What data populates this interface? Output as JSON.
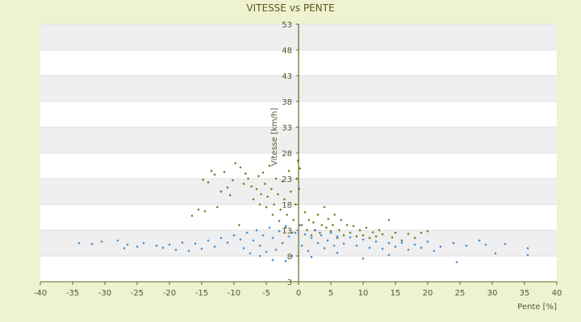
{
  "chart_data": {
    "type": "scatter",
    "title": "VITESSE vs PENTE",
    "xlabel": "Pente [%]",
    "ylabel": "Vitesse [km/h]",
    "xlim": [
      -40,
      40
    ],
    "ylim": [
      3,
      53
    ],
    "xticks": [
      -40,
      -35,
      -30,
      -25,
      -20,
      -15,
      -10,
      -5,
      0,
      5,
      10,
      15,
      20,
      25,
      30,
      35,
      40
    ],
    "yticks": [
      3,
      8,
      13,
      18,
      23,
      28,
      33,
      38,
      43,
      48,
      53
    ],
    "banded_background": true,
    "colors": {
      "page": "#eef2cf",
      "plot": "#ffffff",
      "band": "#efefef",
      "axis": "#5a6b1e",
      "series_olive": "#6b7a1a",
      "series_blue": "#3a8ad4"
    },
    "series": [
      {
        "color": "#6b7a1a",
        "marker": "diamond",
        "points": [
          [
            -16.5,
            15.8
          ],
          [
            -15.5,
            17.0
          ],
          [
            -14.5,
            16.7
          ],
          [
            -14.8,
            22.8
          ],
          [
            -14.0,
            22.3
          ],
          [
            -13.5,
            24.5
          ],
          [
            -13.0,
            23.8
          ],
          [
            -12.0,
            20.5
          ],
          [
            -11.0,
            21.3
          ],
          [
            -10.2,
            22.7
          ],
          [
            -9.8,
            26.0
          ],
          [
            -9.0,
            25.2
          ],
          [
            -8.5,
            22.0
          ],
          [
            -8.2,
            24.0
          ],
          [
            -7.8,
            23.0
          ],
          [
            -7.3,
            21.5
          ],
          [
            -7.0,
            19.0
          ],
          [
            -6.5,
            21.0
          ],
          [
            -6.2,
            23.5
          ],
          [
            -6.0,
            18.0
          ],
          [
            -5.8,
            20.0
          ],
          [
            -5.5,
            24.2
          ],
          [
            -5.2,
            22.0
          ],
          [
            -5.0,
            17.5
          ],
          [
            -4.8,
            19.5
          ],
          [
            -4.5,
            25.5
          ],
          [
            -4.2,
            21.0
          ],
          [
            -4.0,
            16.0
          ],
          [
            -3.8,
            18.0
          ],
          [
            -3.5,
            23.0
          ],
          [
            -3.2,
            20.0
          ],
          [
            -3.0,
            14.8
          ],
          [
            -2.8,
            17.0
          ],
          [
            -2.5,
            22.5
          ],
          [
            -2.2,
            19.0
          ],
          [
            -2.0,
            13.5
          ],
          [
            -1.8,
            16.0
          ],
          [
            -1.5,
            24.5
          ],
          [
            -1.2,
            20.5
          ],
          [
            -1.0,
            12.5
          ],
          [
            -0.8,
            15.0
          ],
          [
            -0.5,
            18.0
          ],
          [
            -0.3,
            23.0
          ],
          [
            -0.1,
            26.5
          ],
          [
            0.1,
            21.0
          ],
          [
            0.2,
            25.0
          ],
          [
            0.5,
            14.0
          ],
          [
            1.0,
            16.5
          ],
          [
            1.3,
            13.0
          ],
          [
            1.6,
            15.0
          ],
          [
            2.0,
            12.0
          ],
          [
            2.3,
            14.5
          ],
          [
            2.6,
            13.0
          ],
          [
            3.0,
            16.0
          ],
          [
            3.3,
            12.5
          ],
          [
            3.6,
            14.0
          ],
          [
            4.0,
            17.5
          ],
          [
            4.3,
            13.5
          ],
          [
            4.6,
            15.2
          ],
          [
            5.0,
            12.8
          ],
          [
            5.3,
            14.0
          ],
          [
            5.6,
            16.0
          ],
          [
            6.0,
            11.5
          ],
          [
            6.3,
            13.0
          ],
          [
            6.6,
            15.0
          ],
          [
            7.0,
            12.0
          ],
          [
            7.5,
            14.0
          ],
          [
            8.0,
            12.5
          ],
          [
            8.5,
            13.8
          ],
          [
            9.0,
            11.8
          ],
          [
            9.5,
            13.0
          ],
          [
            10.0,
            12.0
          ],
          [
            10.5,
            13.5
          ],
          [
            11.0,
            11.5
          ],
          [
            11.5,
            12.6
          ],
          [
            12.0,
            11.8
          ],
          [
            12.5,
            13.0
          ],
          [
            13.0,
            12.2
          ],
          [
            14.0,
            15.0
          ],
          [
            14.5,
            11.6
          ],
          [
            15.0,
            12.5
          ],
          [
            16.0,
            11.0
          ],
          [
            17.0,
            12.3
          ],
          [
            18.0,
            11.5
          ],
          [
            19.0,
            12.5
          ],
          [
            20.0,
            12.8
          ],
          [
            -11.5,
            24.3
          ],
          [
            -12.6,
            17.5
          ],
          [
            -10.6,
            19.8
          ],
          [
            -9.2,
            14.0
          ]
        ]
      },
      {
        "color": "#3a8ad4",
        "marker": "diamond",
        "points": [
          [
            -34.0,
            10.5
          ],
          [
            -32.0,
            10.3
          ],
          [
            -30.5,
            10.8
          ],
          [
            -28.0,
            11.0
          ],
          [
            -27.0,
            9.5
          ],
          [
            -26.5,
            10.2
          ],
          [
            -25.0,
            9.8
          ],
          [
            -24.0,
            10.5
          ],
          [
            -22.0,
            10.0
          ],
          [
            -21.0,
            9.6
          ],
          [
            -20.0,
            10.2
          ],
          [
            -19.0,
            9.2
          ],
          [
            -18.0,
            10.6
          ],
          [
            -17.0,
            9.0
          ],
          [
            -16.0,
            10.4
          ],
          [
            -15.0,
            9.4
          ],
          [
            -14.0,
            11.0
          ],
          [
            -13.0,
            9.8
          ],
          [
            -12.0,
            11.5
          ],
          [
            -11.0,
            10.6
          ],
          [
            -10.0,
            12.0
          ],
          [
            -9.0,
            11.2
          ],
          [
            -8.5,
            9.5
          ],
          [
            -8.0,
            12.5
          ],
          [
            -7.5,
            8.5
          ],
          [
            -7.0,
            11.0
          ],
          [
            -6.5,
            13.0
          ],
          [
            -6.0,
            10.0
          ],
          [
            -5.5,
            12.0
          ],
          [
            -5.0,
            8.8
          ],
          [
            -4.5,
            13.5
          ],
          [
            -4.0,
            11.5
          ],
          [
            -3.5,
            9.2
          ],
          [
            -3.0,
            12.8
          ],
          [
            -2.5,
            10.5
          ],
          [
            -2.0,
            13.8
          ],
          [
            -1.5,
            11.8
          ],
          [
            -1.0,
            8.0
          ],
          [
            -0.5,
            12.5
          ],
          [
            0.2,
            14.0
          ],
          [
            0.5,
            10.0
          ],
          [
            1.0,
            12.2
          ],
          [
            1.5,
            9.0
          ],
          [
            2.0,
            11.5
          ],
          [
            2.5,
            13.0
          ],
          [
            3.0,
            10.5
          ],
          [
            3.5,
            12.0
          ],
          [
            4.0,
            9.5
          ],
          [
            4.5,
            11.0
          ],
          [
            5.0,
            12.5
          ],
          [
            5.5,
            10.0
          ],
          [
            6.0,
            11.8
          ],
          [
            7.0,
            10.4
          ],
          [
            8.0,
            11.6
          ],
          [
            9.0,
            10.0
          ],
          [
            10.0,
            11.2
          ],
          [
            11.0,
            9.6
          ],
          [
            12.0,
            10.8
          ],
          [
            13.0,
            9.4
          ],
          [
            14.0,
            10.5
          ],
          [
            15.0,
            9.8
          ],
          [
            16.0,
            10.6
          ],
          [
            17.0,
            9.2
          ],
          [
            18.0,
            10.2
          ],
          [
            19.0,
            9.6
          ],
          [
            20.0,
            10.8
          ],
          [
            21.0,
            9.0
          ],
          [
            22.0,
            9.8
          ],
          [
            24.0,
            10.5
          ],
          [
            24.5,
            6.8
          ],
          [
            26.0,
            10.0
          ],
          [
            28.0,
            11.0
          ],
          [
            29.0,
            10.2
          ],
          [
            30.5,
            8.5
          ],
          [
            32.0,
            10.3
          ],
          [
            35.5,
            9.5
          ],
          [
            35.5,
            8.2
          ],
          [
            -2.0,
            7.0
          ],
          [
            -4.0,
            7.2
          ],
          [
            -6.0,
            8.0
          ],
          [
            2.0,
            7.8
          ],
          [
            6.0,
            8.6
          ],
          [
            10.0,
            7.5
          ],
          [
            14.0,
            8.2
          ]
        ]
      }
    ]
  }
}
